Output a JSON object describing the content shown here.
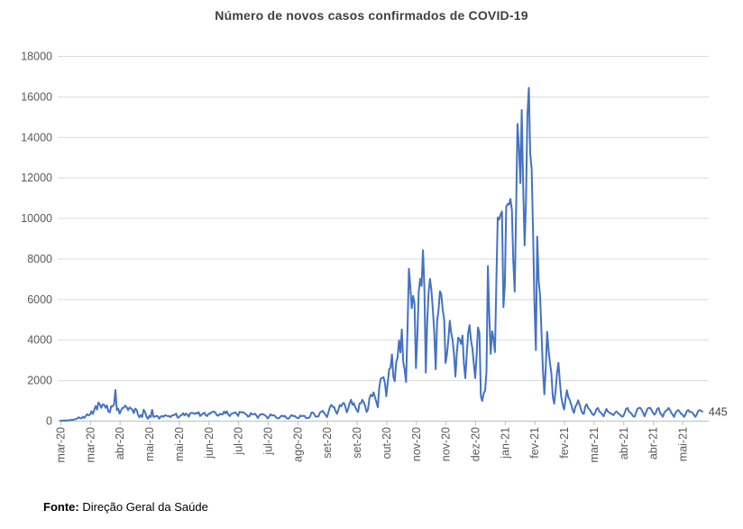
{
  "title": "Número de novos casos confirmados de COVID-19",
  "source": {
    "label": "Fonte:",
    "text": " Direção Geral da Saúde"
  },
  "chart_data": {
    "type": "line",
    "title": "Número de novos casos confirmados de COVID-19",
    "xlabel": "",
    "ylabel": "",
    "grid": true,
    "legend": "none",
    "ylim": [
      0,
      18000
    ],
    "y_ticks": [
      0,
      2000,
      4000,
      6000,
      8000,
      10000,
      12000,
      14000,
      16000,
      18000
    ],
    "x_tick_labels": [
      "mar-20",
      "mar-20",
      "abr-20",
      "mai-20",
      "mai-20",
      "jun-20",
      "jul-20",
      "jul-20",
      "ago-20",
      "set-20",
      "set-20",
      "out-20",
      "nov-20",
      "nov-20",
      "dez-20",
      "jan-21",
      "fev-21",
      "fev-21",
      "mar-21",
      "abr-21",
      "abr-21",
      "mai-21"
    ],
    "x_tick_interval_days": 21,
    "end_label": "445",
    "line_color": "#4472C4",
    "grid_color": "#D9D9D9",
    "axis_color": "#BFBFBF",
    "tick_label_color": "#595959",
    "end_label_color": "#404040",
    "values": [
      2,
      2,
      3,
      6,
      9,
      13,
      20,
      30,
      39,
      41,
      57,
      78,
      112,
      169,
      126,
      117,
      194,
      143,
      235,
      320,
      260,
      302,
      460,
      331,
      549,
      724,
      549,
      902,
      792,
      633,
      808,
      783,
      638,
      754,
      452,
      408,
      712,
      699,
      815,
      1516,
      515,
      598,
      349,
      514,
      628,
      643,
      750,
      663,
      521,
      657,
      603,
      544,
      371,
      595,
      540,
      295,
      163,
      277,
      183,
      540,
      434,
      203,
      92,
      242,
      178,
      533,
      183,
      203,
      236,
      219,
      98,
      198,
      234,
      187,
      264,
      253,
      227,
      226,
      173,
      252,
      271,
      288,
      350,
      150,
      165,
      251,
      285,
      368,
      257,
      350,
      297,
      195,
      366,
      382,
      377,
      331,
      382,
      346,
      421,
      229,
      294,
      346,
      403,
      270,
      227,
      346,
      336,
      417,
      434,
      451,
      377,
      259,
      246,
      336,
      310,
      311,
      451,
      356,
      457,
      301,
      229,
      323,
      367,
      374,
      413,
      328,
      232,
      443,
      412,
      418,
      403,
      342,
      291,
      198,
      233,
      375,
      310,
      313,
      342,
      246,
      135,
      252,
      312,
      311,
      313,
      260,
      206,
      106,
      203,
      313,
      255,
      274,
      238,
      152,
      112,
      120,
      207,
      255,
      204,
      239,
      152,
      98,
      112,
      219,
      278,
      218,
      242,
      172,
      132,
      124,
      252,
      219,
      244,
      236,
      138,
      123,
      135,
      211,
      399,
      401,
      312,
      192,
      208,
      213,
      406,
      444,
      486,
      374,
      276,
      178,
      425,
      646,
      780,
      687,
      673,
      486,
      338,
      522,
      770,
      708,
      849,
      869,
      673,
      415,
      594,
      854,
      1033,
      780,
      869,
      666,
      531,
      427,
      854,
      854,
      1033,
      898,
      731,
      427,
      548,
      1101,
      1278,
      1205,
      1394,
      1150,
      910,
      662,
      1646,
      2072,
      2101,
      2153,
      1856,
      1208,
      1876,
      2535,
      2608,
      3270,
      2153,
      1949,
      2899,
      3103,
      3960,
      3369,
      4499,
      2890,
      2506,
      1906,
      4452,
      7497,
      6640,
      5550,
      6158,
      5784,
      2596,
      4097,
      6383,
      6994,
      6653,
      8413,
      6472,
      2371,
      4923,
      6371,
      6994,
      6400,
      5444,
      4368,
      2533,
      4923,
      5444,
      6383,
      6227,
      5460,
      4993,
      2847,
      3277,
      4044,
      4932,
      4320,
      3972,
      3269,
      2173,
      3387,
      4097,
      4002,
      3792,
      4202,
      2828,
      2099,
      3239,
      4320,
      4720,
      3972,
      3569,
      2846,
      2099,
      3239,
      4602,
      4336,
      1214,
      976,
      1335,
      1498,
      2404,
      7627,
      5180,
      3299,
      4413,
      4045,
      3384,
      6923,
      10027,
      9927,
      10176,
      10324,
      5604,
      6702,
      10556,
      10698,
      10663,
      10947,
      10385,
      7915,
      6370,
      10455,
      14647,
      13544,
      11721,
      15333,
      11603,
      8652,
      10765,
      15073,
      16432,
      13200,
      12435,
      9498,
      5805,
      3480,
      9083,
      6916,
      6132,
      4387,
      2505,
      1303,
      2583,
      4387,
      3480,
      2856,
      2324,
      1166,
      844,
      1502,
      2324,
      2856,
      1939,
      1186,
      804,
      549,
      1032,
      1502,
      1160,
      1027,
      804,
      549,
      385,
      691,
      810,
      1007,
      788,
      564,
      366,
      338,
      691,
      810,
      627,
      564,
      456,
      317,
      276,
      389,
      577,
      627,
      456,
      399,
      317,
      220,
      389,
      577,
      456,
      399,
      359,
      317,
      276,
      389,
      456,
      399,
      317,
      276,
      196,
      222,
      389,
      577,
      627,
      456,
      399,
      317,
      220,
      196,
      389,
      577,
      627,
      630,
      532,
      392,
      220,
      389,
      577,
      627,
      630,
      532,
      392,
      296,
      389,
      577,
      627,
      391,
      296,
      196,
      389,
      477,
      527,
      630,
      532,
      392,
      296,
      189,
      389,
      477,
      527,
      430,
      332,
      292,
      189,
      289,
      477,
      527,
      430,
      432,
      392,
      289,
      189,
      289,
      477,
      527,
      500,
      445
    ]
  }
}
